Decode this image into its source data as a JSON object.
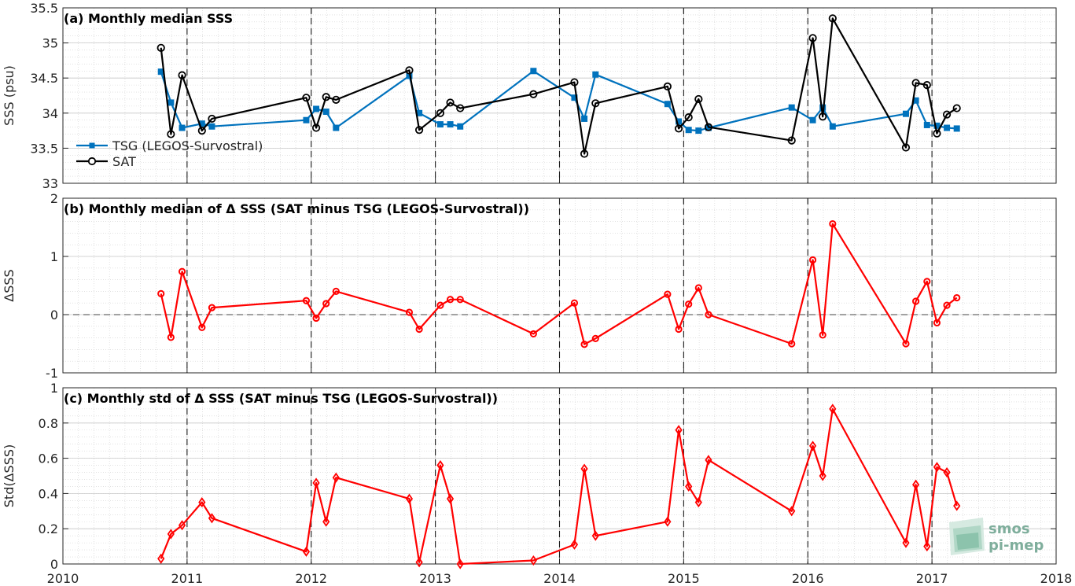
{
  "chart_data": [
    {
      "type": "line",
      "title": "(a) Monthly median SSS",
      "ylabel": "SSS (psu)",
      "xlim": [
        2010,
        2018
      ],
      "ylim": [
        33,
        35.5
      ],
      "yticks": [
        33,
        33.5,
        34,
        34.5,
        35,
        35.5
      ],
      "ytick_labels": [
        "33",
        "33.5",
        "34",
        "34.5",
        "35",
        "35.5"
      ],
      "grid": true,
      "legend_position": "lower-left",
      "colors": {
        "tsg": "#0072bd",
        "sat": "#000000"
      },
      "series": [
        {
          "name": "TSG (LEGOS-Survostral)",
          "x": [
            2010.79,
            2010.87,
            2010.96,
            2011.12,
            2011.2,
            2011.96,
            2012.04,
            2012.12,
            2012.2,
            2012.79,
            2012.87,
            2013.04,
            2013.12,
            2013.2,
            2013.79,
            2014.12,
            2014.2,
            2014.29,
            2014.87,
            2014.96,
            2015.04,
            2015.12,
            2015.2,
            2015.87,
            2016.04,
            2016.12,
            2016.2,
            2016.79,
            2016.87,
            2016.96,
            2017.04,
            2017.12,
            2017.2
          ],
          "y": [
            34.59,
            34.15,
            33.79,
            33.85,
            33.81,
            33.9,
            34.06,
            34.02,
            33.79,
            34.53,
            34.0,
            33.84,
            33.84,
            33.81,
            34.6,
            34.22,
            33.92,
            34.55,
            34.13,
            33.88,
            33.76,
            33.75,
            33.79,
            34.08,
            33.9,
            34.08,
            33.81,
            33.99,
            34.18,
            33.83,
            33.82,
            33.79,
            33.78
          ]
        },
        {
          "name": "SAT",
          "x": [
            2010.79,
            2010.87,
            2010.96,
            2011.12,
            2011.2,
            2011.96,
            2012.04,
            2012.12,
            2012.2,
            2012.79,
            2012.87,
            2013.04,
            2013.12,
            2013.2,
            2013.79,
            2014.12,
            2014.2,
            2014.29,
            2014.87,
            2014.96,
            2015.04,
            2015.12,
            2015.2,
            2015.87,
            2016.04,
            2016.12,
            2016.2,
            2016.79,
            2016.87,
            2016.96,
            2017.04,
            2017.12,
            2017.2
          ],
          "y": [
            34.93,
            33.7,
            34.54,
            33.75,
            33.92,
            34.22,
            33.79,
            34.23,
            34.19,
            34.61,
            33.76,
            34.0,
            34.15,
            34.07,
            34.27,
            34.44,
            33.42,
            34.14,
            34.38,
            33.78,
            33.94,
            34.2,
            33.8,
            33.61,
            35.07,
            33.95,
            35.35,
            33.51,
            34.43,
            34.4,
            33.71,
            33.98,
            34.07
          ]
        }
      ]
    },
    {
      "type": "line",
      "title": "(b) Monthly median of Δ SSS (SAT minus TSG (LEGOS-Survostral))",
      "ylabel": "ΔSSS",
      "xlim": [
        2010,
        2018
      ],
      "ylim": [
        -1,
        2
      ],
      "yticks": [
        -1,
        0,
        1,
        2
      ],
      "ytick_labels": [
        "-1",
        "0",
        "1",
        "2"
      ],
      "grid": true,
      "reference_line": 0,
      "colors": {
        "line": "#ff0000"
      },
      "series": [
        {
          "x": [
            2010.79,
            2010.87,
            2010.96,
            2011.12,
            2011.2,
            2011.96,
            2012.04,
            2012.12,
            2012.2,
            2012.79,
            2012.87,
            2013.04,
            2013.12,
            2013.2,
            2013.79,
            2014.12,
            2014.2,
            2014.29,
            2014.87,
            2014.96,
            2015.04,
            2015.12,
            2015.2,
            2015.87,
            2016.04,
            2016.12,
            2016.2,
            2016.79,
            2016.87,
            2016.96,
            2017.04,
            2017.12,
            2017.2
          ],
          "y": [
            0.36,
            -0.39,
            0.74,
            -0.22,
            0.12,
            0.24,
            -0.06,
            0.19,
            0.4,
            0.04,
            -0.25,
            0.16,
            0.26,
            0.26,
            -0.33,
            0.2,
            -0.51,
            -0.41,
            0.35,
            -0.25,
            0.18,
            0.46,
            0.0,
            -0.5,
            0.94,
            -0.35,
            1.56,
            -0.5,
            0.23,
            0.57,
            -0.14,
            0.16,
            0.29
          ]
        }
      ]
    },
    {
      "type": "line",
      "title": "(c) Monthly std of Δ SSS (SAT minus TSG (LEGOS-Survostral))",
      "ylabel": "Std(ΔSSS)",
      "xlim": [
        2010,
        2018
      ],
      "ylim": [
        0,
        1
      ],
      "yticks": [
        0,
        0.2,
        0.4,
        0.6,
        0.8,
        1
      ],
      "ytick_labels": [
        "0",
        "0.2",
        "0.4",
        "0.6",
        "0.8",
        "1"
      ],
      "xticks": [
        2010,
        2011,
        2012,
        2013,
        2014,
        2015,
        2016,
        2017,
        2018
      ],
      "xtick_labels": [
        "2010",
        "2011",
        "2012",
        "2013",
        "2014",
        "2015",
        "2016",
        "2017",
        "2018"
      ],
      "grid": true,
      "colors": {
        "line": "#ff0000"
      },
      "series": [
        {
          "x": [
            2010.79,
            2010.87,
            2010.96,
            2011.12,
            2011.2,
            2011.96,
            2012.04,
            2012.12,
            2012.2,
            2012.79,
            2012.87,
            2013.04,
            2013.12,
            2013.2,
            2013.79,
            2014.12,
            2014.2,
            2014.29,
            2014.87,
            2014.96,
            2015.04,
            2015.12,
            2015.2,
            2015.87,
            2016.04,
            2016.12,
            2016.2,
            2016.79,
            2016.87,
            2016.96,
            2017.04,
            2017.12,
            2017.2
          ],
          "y": [
            0.03,
            0.17,
            0.22,
            0.35,
            0.26,
            0.07,
            0.46,
            0.24,
            0.49,
            0.37,
            0.01,
            0.56,
            0.37,
            0.0,
            0.02,
            0.11,
            0.54,
            0.16,
            0.24,
            0.76,
            0.44,
            0.35,
            0.59,
            0.3,
            0.67,
            0.5,
            0.88,
            0.12,
            0.45,
            0.1,
            0.55,
            0.52,
            0.33
          ]
        }
      ]
    }
  ],
  "logo": {
    "line1": "smos",
    "line2": "pi-mep"
  }
}
